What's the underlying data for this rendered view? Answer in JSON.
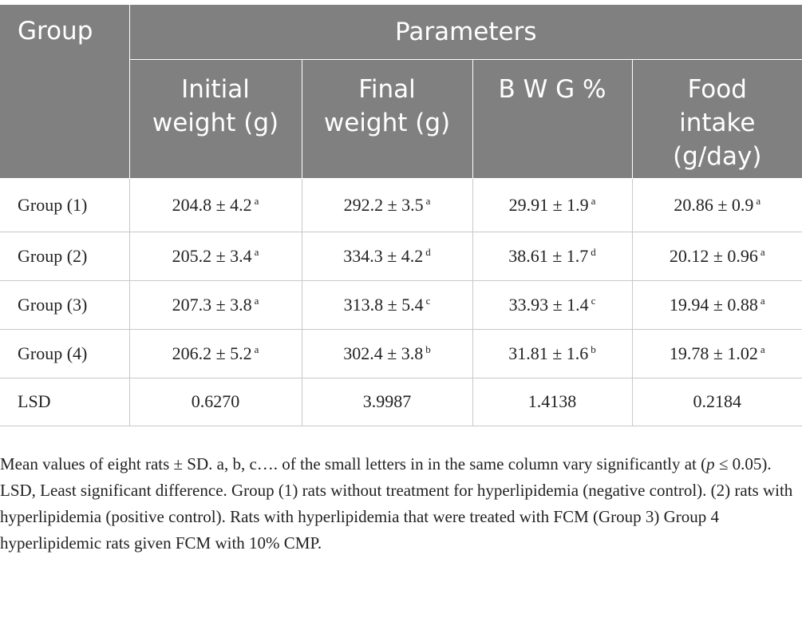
{
  "header": {
    "group": "Group",
    "parameters": "Parameters",
    "columns": [
      [
        "Initial",
        "weight (g)"
      ],
      [
        "Final",
        "weight (g)"
      ],
      [
        "B W G %"
      ],
      [
        "Food",
        "intake",
        "(g/day)"
      ]
    ]
  },
  "table": {
    "rows": [
      {
        "label": "Group (1)",
        "cells": [
          {
            "text": "204.8 ± 4.2",
            "sup": "a"
          },
          {
            "text": "292.2 ± 3.5",
            "sup": "a"
          },
          {
            "text": "29.91 ± 1.9",
            "sup": "a"
          },
          {
            "text": "20.86 ± 0.9",
            "sup": "a"
          }
        ]
      },
      {
        "label": "Group (2)",
        "cells": [
          {
            "text": "205.2 ± 3.4",
            "sup": "a"
          },
          {
            "text": "334.3 ± 4.2",
            "sup": "d"
          },
          {
            "text": "38.61 ± 1.7",
            "sup": "d"
          },
          {
            "text": "20.12 ± 0.96",
            "sup": "a"
          }
        ]
      },
      {
        "label": "Group (3)",
        "cells": [
          {
            "text": "207.3 ± 3.8",
            "sup": "a"
          },
          {
            "text": "313.8 ± 5.4",
            "sup": "c"
          },
          {
            "text": "33.93 ± 1.4",
            "sup": "c"
          },
          {
            "text": "19.94 ± 0.88",
            "sup": "a"
          }
        ]
      },
      {
        "label": "Group (4)",
        "cells": [
          {
            "text": "206.2 ± 5.2",
            "sup": "a"
          },
          {
            "text": "302.4 ± 3.8",
            "sup": "b"
          },
          {
            "text": "31.81 ± 1.6",
            "sup": "b"
          },
          {
            "text": "19.78 ± 1.02",
            "sup": "a"
          }
        ]
      },
      {
        "label": "LSD",
        "cells": [
          {
            "text": "0.6270"
          },
          {
            "text": "3.9987"
          },
          {
            "text": "1.4138"
          },
          {
            "text": "0.2184"
          }
        ]
      }
    ]
  },
  "footnote": [
    "Mean values of eight rats ± SD. a, b, c…. of the small letters in in the same column vary significantly at (",
    "p",
    " ≤ 0.05). LSD, Least significant difference. Group (1) rats without treatment for hyperlipidemia (negative control). (2) rats with hyperlipidemia (positive control). Rats with hyperlipidemia that were treated with FCM (Group 3) Group 4 hyperlipidemic rats given FCM with 10% CMP."
  ]
}
